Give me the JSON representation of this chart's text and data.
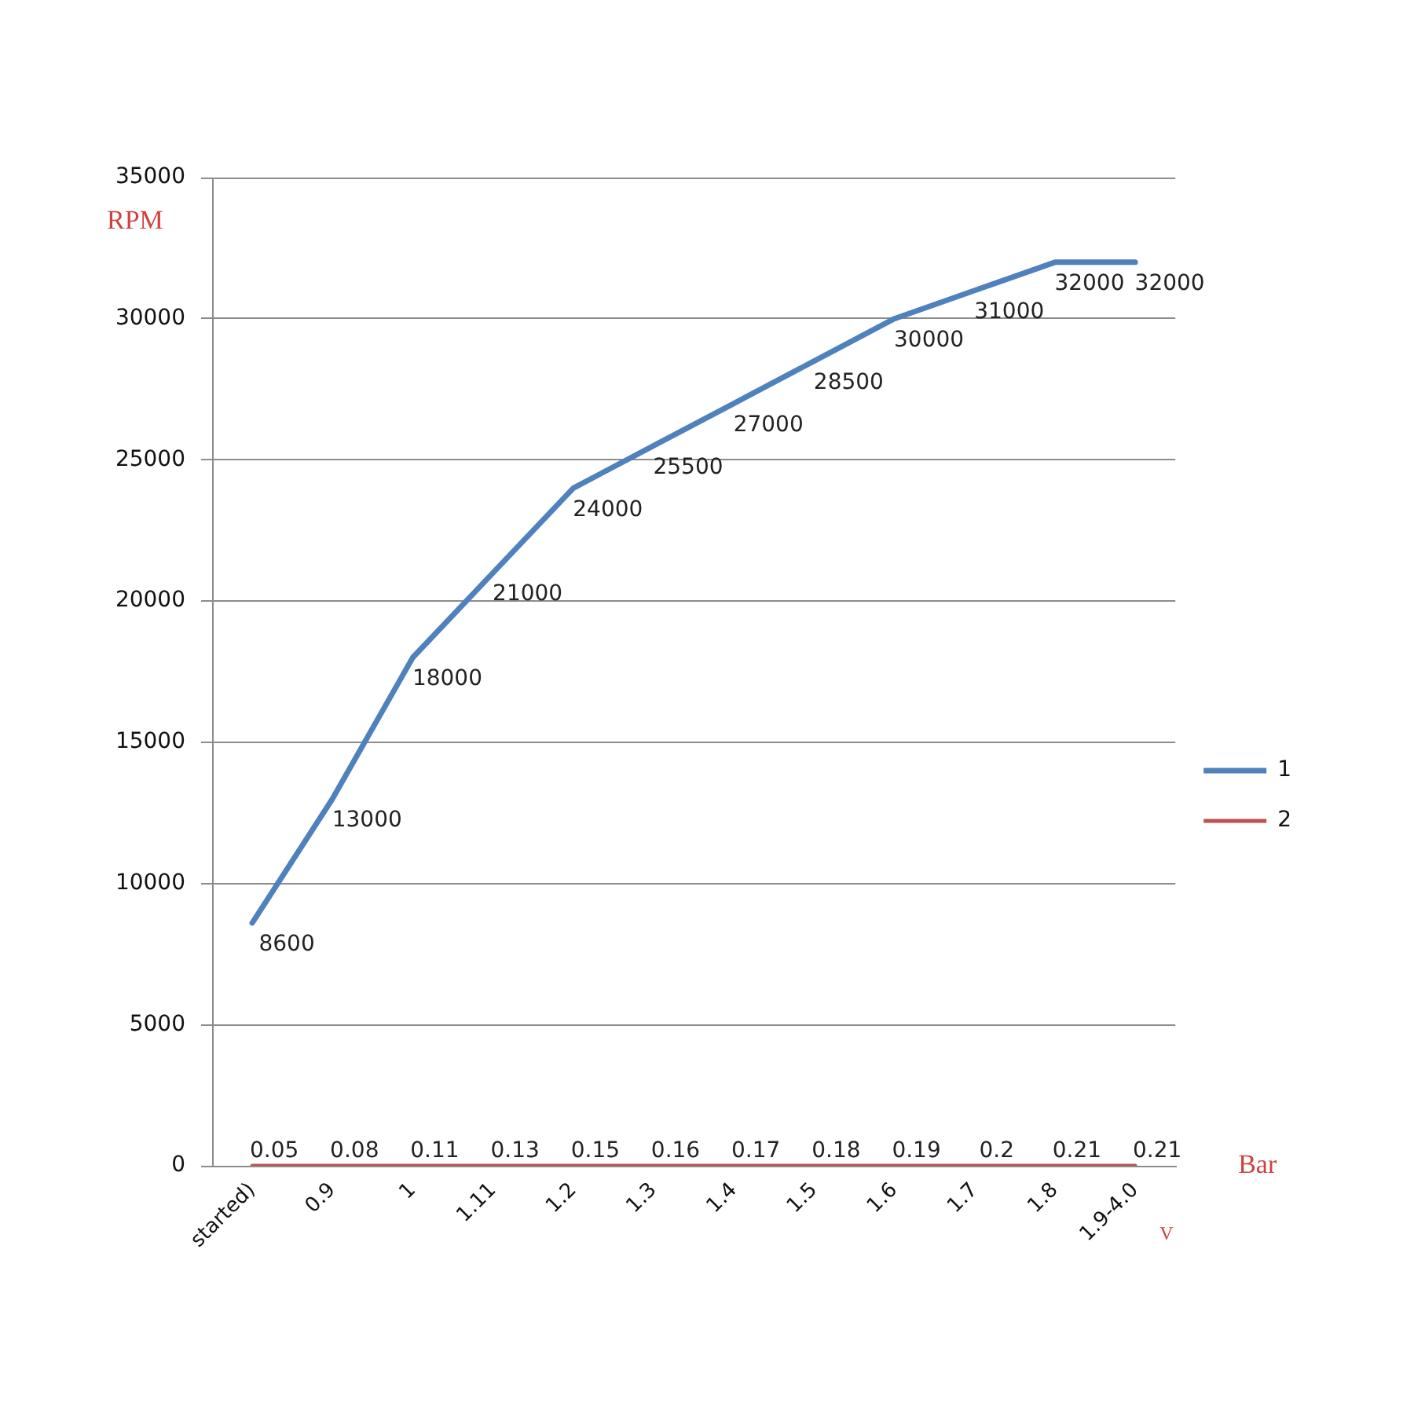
{
  "chart_data": {
    "type": "line",
    "ylabel": "RPM",
    "categories": [
      "started)",
      "0.9",
      "1",
      "1.11",
      "1.2",
      "1.3",
      "1.4",
      "1.5",
      "1.6",
      "1.7",
      "1.8",
      "1.9-4.0"
    ],
    "series": [
      {
        "name": "1",
        "color": "#4f81bd",
        "values": [
          8600,
          13000,
          18000,
          21000,
          24000,
          25500,
          27000,
          28500,
          30000,
          31000,
          32000,
          32000
        ]
      },
      {
        "name": "2",
        "color": "#c0504d",
        "values": [
          0.05,
          0.08,
          0.11,
          0.13,
          0.15,
          0.16,
          0.17,
          0.18,
          0.19,
          0.2,
          0.21,
          0.21
        ]
      }
    ],
    "ylim": [
      0,
      35000
    ],
    "yticks": [
      0,
      5000,
      10000,
      15000,
      20000,
      25000,
      30000,
      35000
    ],
    "grid": "y",
    "legend": "right",
    "data_labels": true,
    "annotations": [
      "Bar",
      "V"
    ]
  }
}
